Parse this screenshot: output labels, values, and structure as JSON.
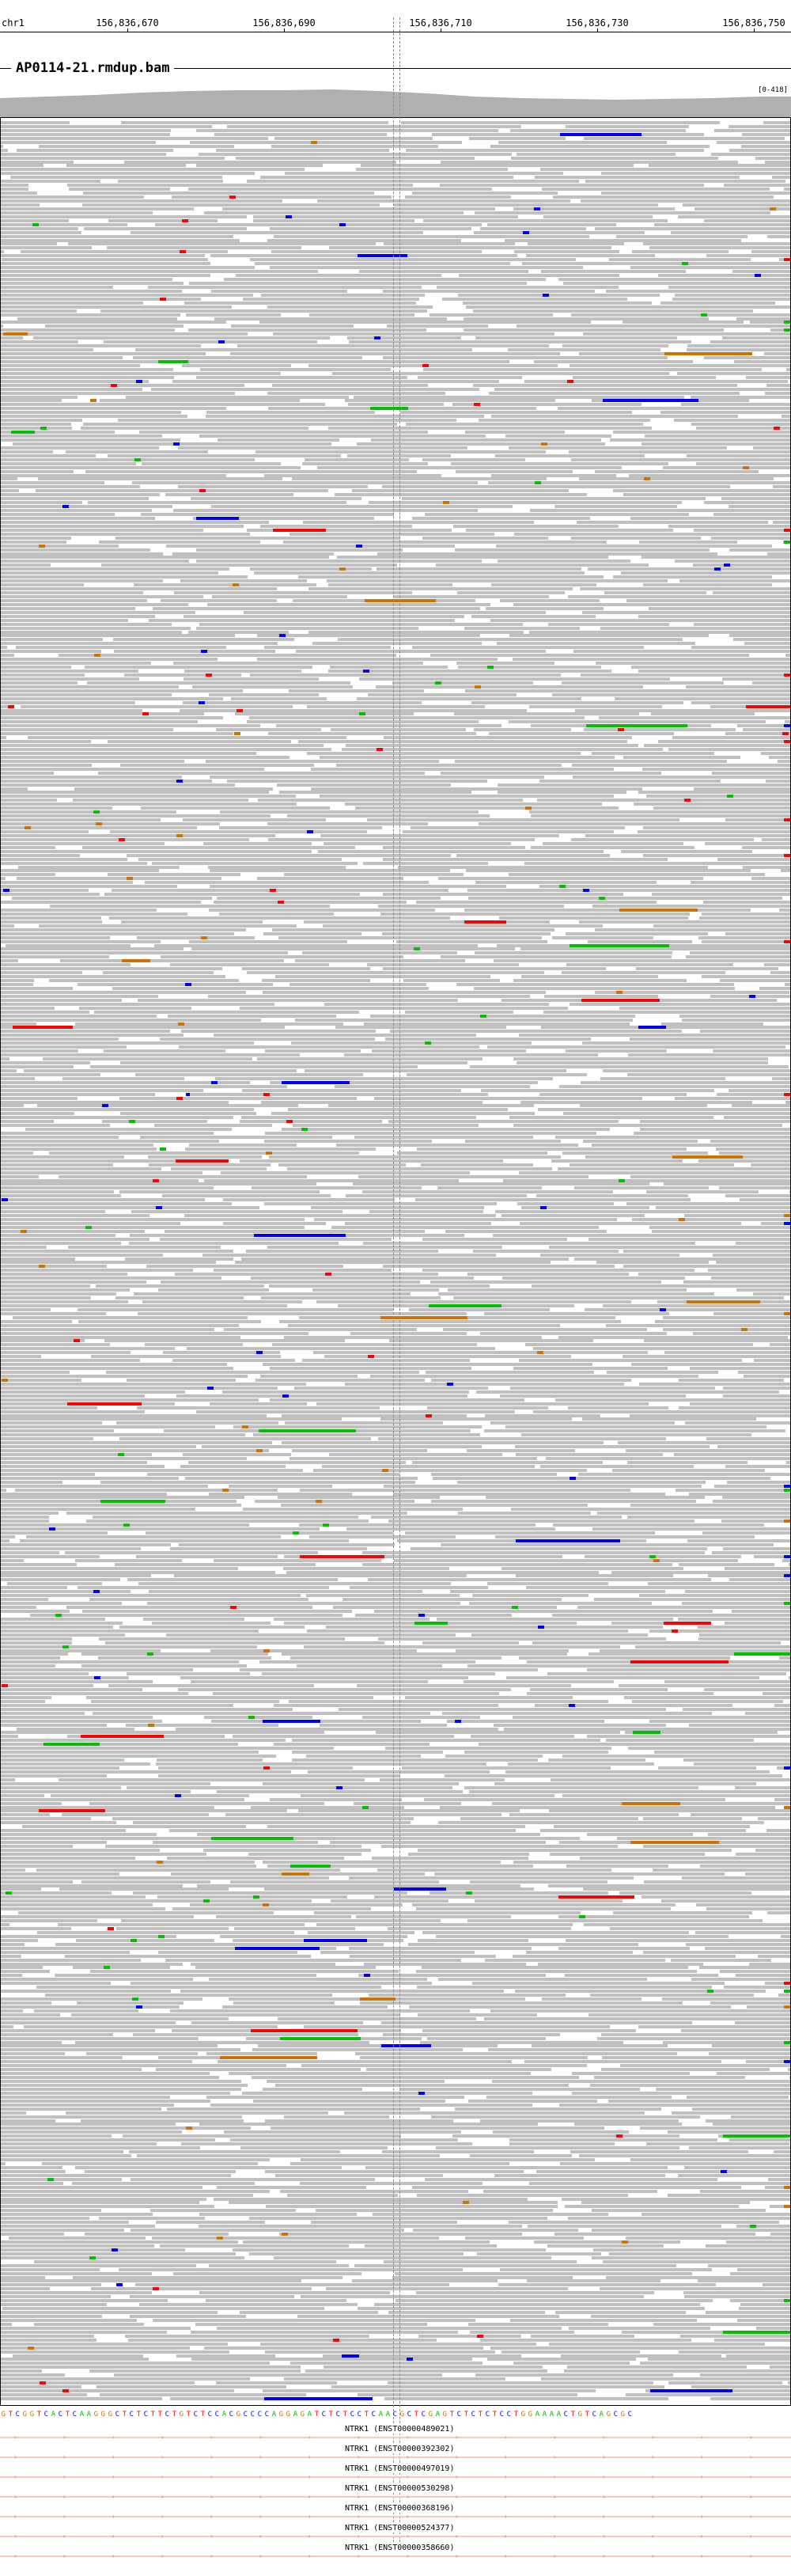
{
  "ruler": {
    "chromosome": "chr1",
    "ticks": [
      "156,836,670",
      "156,836,690",
      "156,836,710",
      "156,836,730",
      "156,836,750"
    ]
  },
  "track": {
    "name": "AP0114-21.rmdup.bam",
    "scale": "[0-418]"
  },
  "colors": {
    "read_gray": "#c0c0c0",
    "A": "#00c000",
    "C": "#0000ff",
    "G": "#d17105",
    "T": "#ff0000",
    "coverage": "#b0b0b0",
    "gene_line": "#f8c8c0"
  },
  "reference_sequence": "GTCGGTCACTCAAGGGCTCTCTTCTGTCTCCACGCCCCAGGAGATCTCTCCTCAACGCTCGAGTCTCTCTCCTGGAAAACTGTCAGCGC",
  "genes": [
    "NTRK1 (ENST00000489021)",
    "NTRK1 (ENST00000392302)",
    "NTRK1 (ENST00000497019)",
    "NTRK1 (ENST00000530298)",
    "NTRK1 (ENST00000368196)",
    "NTRK1 (ENST00000524377)",
    "NTRK1 (ENST00000358660)"
  ]
}
